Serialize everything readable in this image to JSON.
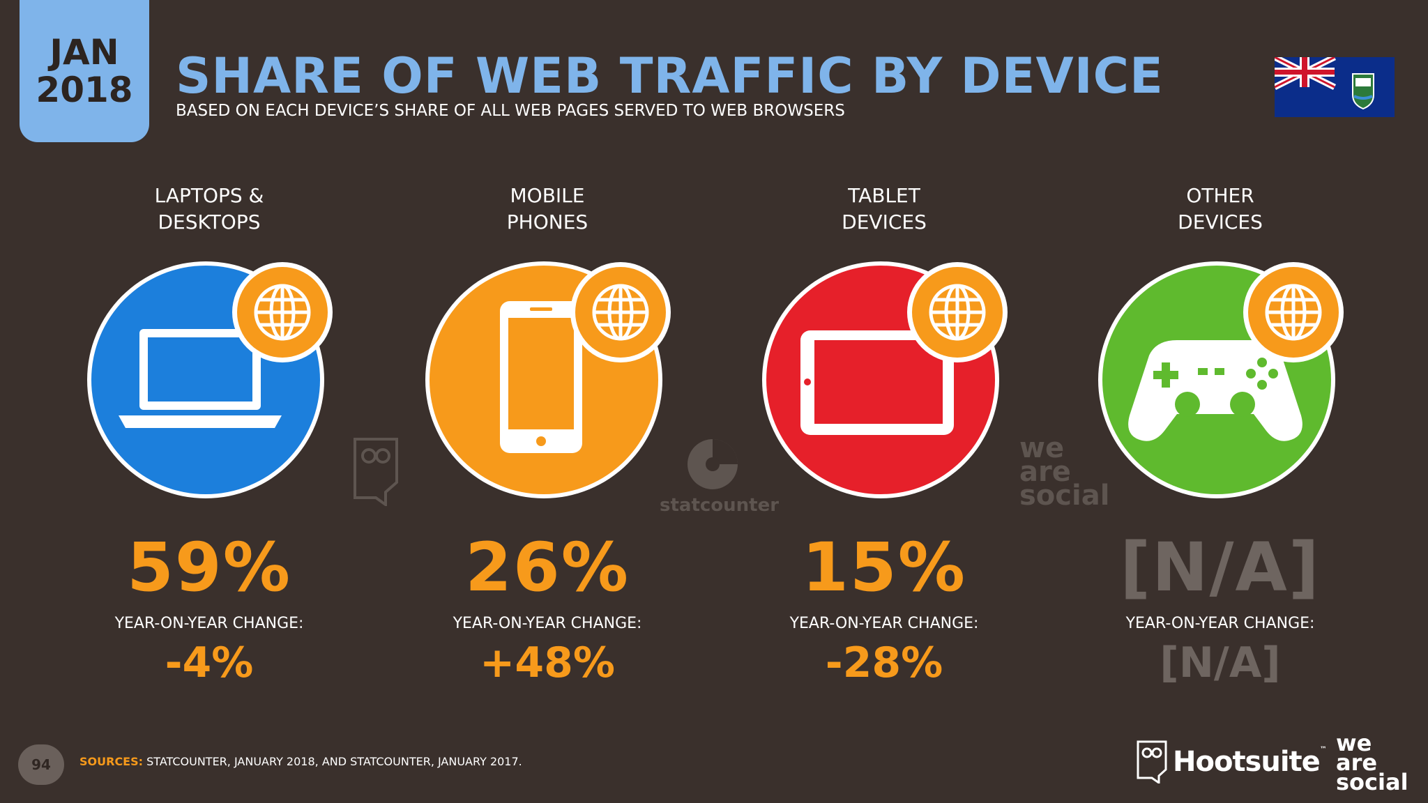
{
  "header": {
    "badge_month": "JAN",
    "badge_year": "2018",
    "title": "SHARE OF WEB TRAFFIC BY DEVICE",
    "subtitle": "BASED ON EACH DEVICE’S SHARE OF ALL WEB PAGES SERVED TO WEB BROWSERS"
  },
  "devices": [
    {
      "label_line1": "LAPTOPS &",
      "label_line2": "DESKTOPS",
      "share": "59%",
      "yoy_label": "YEAR-ON-YEAR CHANGE:",
      "yoy": "-4%",
      "color": "#1c7fdc",
      "icon": "laptop-icon"
    },
    {
      "label_line1": "MOBILE",
      "label_line2": "PHONES",
      "share": "26%",
      "yoy_label": "YEAR-ON-YEAR CHANGE:",
      "yoy": "+48%",
      "color": "#f79a1b",
      "icon": "mobile-phone-icon"
    },
    {
      "label_line1": "TABLET",
      "label_line2": "DEVICES",
      "share": "15%",
      "yoy_label": "YEAR-ON-YEAR CHANGE:",
      "yoy": "-28%",
      "color": "#e6202a",
      "icon": "tablet-icon"
    },
    {
      "label_line1": "OTHER",
      "label_line2": "DEVICES",
      "share": "[N/A]",
      "yoy_label": "YEAR-ON-YEAR CHANGE:",
      "yoy": "[N/A]",
      "color": "#5fba2e",
      "icon": "game-controller-icon"
    }
  ],
  "watermarks": {
    "statcounter": "statcounter",
    "we_are_social": [
      "we",
      "are",
      "social"
    ]
  },
  "footer": {
    "page_number": "94",
    "sources_label": "SOURCES:",
    "sources_text": "STATCOUNTER, JANUARY 2018, AND STATCOUNTER, JANUARY 2017.",
    "hootsuite": "Hootsuite",
    "hootsuite_tm": "™",
    "we_are_social": [
      "we",
      "are",
      "social"
    ]
  },
  "colors": {
    "background": "#3a302c",
    "accent_blue": "#7fb4ea",
    "accent_orange": "#f79a1b",
    "na_gray": "#6e6560"
  }
}
